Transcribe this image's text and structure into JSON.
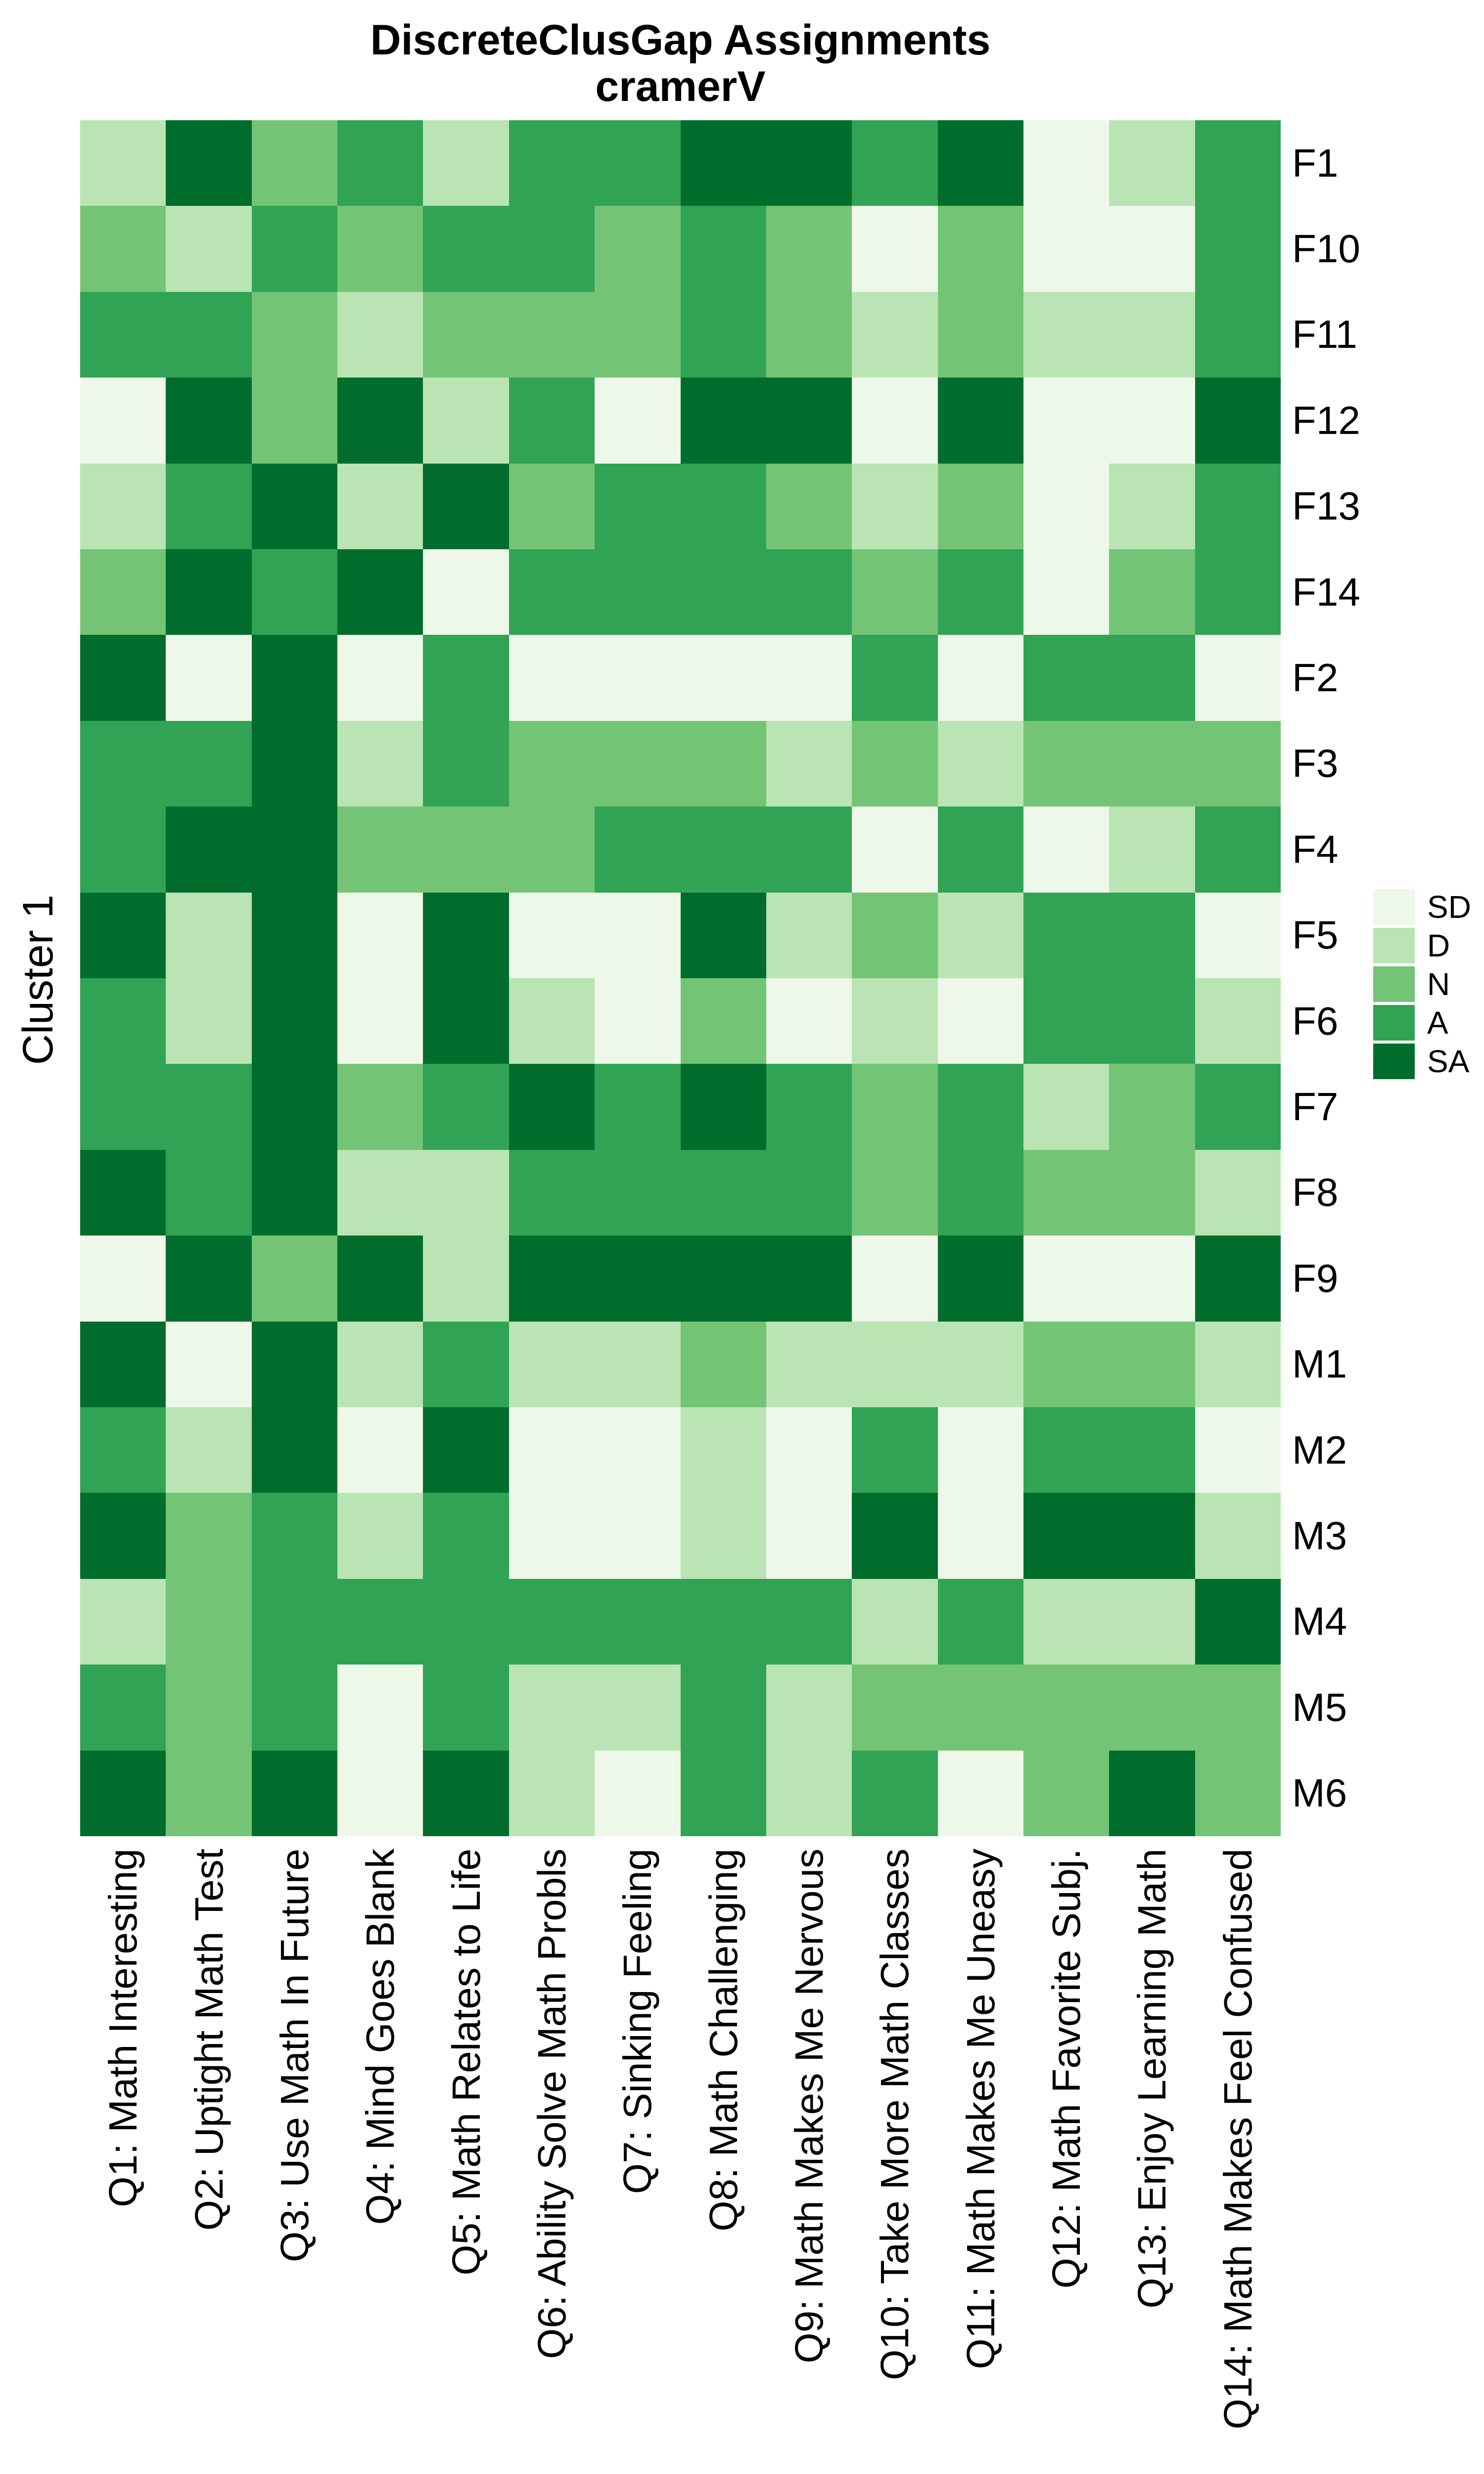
{
  "title": {
    "line1": "DiscreteClusGap Assignments",
    "line2": "cramerV"
  },
  "y_axis_title": "Cluster 1",
  "legend": {
    "entries": [
      {
        "label": "SD",
        "color": "#EDF8E9"
      },
      {
        "label": "D",
        "color": "#BAE4B3"
      },
      {
        "label": "N",
        "color": "#74C476"
      },
      {
        "label": "A",
        "color": "#31A354"
      },
      {
        "label": "SA",
        "color": "#006D2C"
      }
    ]
  },
  "chart_data": {
    "type": "heatmap",
    "title": "DiscreteClusGap Assignments cramerV",
    "levels": [
      "SD",
      "D",
      "N",
      "A",
      "SA"
    ],
    "palette": {
      "SD": "#EDF8E9",
      "D": "#BAE4B3",
      "N": "#74C476",
      "A": "#31A354",
      "SA": "#006D2C"
    },
    "rows": [
      "F1",
      "F10",
      "F11",
      "F12",
      "F13",
      "F14",
      "F2",
      "F3",
      "F4",
      "F5",
      "F6",
      "F7",
      "F8",
      "F9",
      "M1",
      "M2",
      "M3",
      "M4",
      "M5",
      "M6"
    ],
    "columns": [
      "Q1: Math Interesting",
      "Q2: Uptight Math Test",
      "Q3: Use Math In Future",
      "Q4: Mind Goes Blank",
      "Q5: Math Relates to Life",
      "Q6: Ability Solve Math Probls",
      "Q7: Sinking Feeling",
      "Q8: Math Challenging",
      "Q9: Math Makes Me Nervous",
      "Q10: Take More Math Classes",
      "Q11: Math Makes Me Uneasy",
      "Q12: Math Favorite Subj.",
      "Q13: Enjoy Learning Math",
      "Q14: Math Makes Feel Confused"
    ],
    "values": [
      [
        "D",
        "SA",
        "N",
        "A",
        "D",
        "A",
        "A",
        "SA",
        "SA",
        "A",
        "SA",
        "SD",
        "D",
        "A"
      ],
      [
        "N",
        "D",
        "A",
        "N",
        "A",
        "A",
        "N",
        "A",
        "N",
        "SD",
        "N",
        "SD",
        "SD",
        "A"
      ],
      [
        "A",
        "A",
        "N",
        "D",
        "N",
        "N",
        "N",
        "A",
        "N",
        "D",
        "N",
        "D",
        "D",
        "A"
      ],
      [
        "SD",
        "SA",
        "N",
        "SA",
        "D",
        "A",
        "SD",
        "SA",
        "SA",
        "SD",
        "SA",
        "SD",
        "SD",
        "SA"
      ],
      [
        "D",
        "A",
        "SA",
        "D",
        "SA",
        "N",
        "A",
        "A",
        "N",
        "D",
        "N",
        "SD",
        "D",
        "A"
      ],
      [
        "N",
        "SA",
        "A",
        "SA",
        "SD",
        "A",
        "A",
        "A",
        "A",
        "N",
        "A",
        "SD",
        "N",
        "A"
      ],
      [
        "SA",
        "SD",
        "SA",
        "SD",
        "A",
        "SD",
        "SD",
        "SD",
        "SD",
        "A",
        "SD",
        "A",
        "A",
        "SD"
      ],
      [
        "A",
        "A",
        "SA",
        "D",
        "A",
        "N",
        "N",
        "N",
        "D",
        "N",
        "D",
        "N",
        "N",
        "N"
      ],
      [
        "A",
        "SA",
        "SA",
        "N",
        "N",
        "N",
        "A",
        "A",
        "A",
        "SD",
        "A",
        "SD",
        "D",
        "A"
      ],
      [
        "SA",
        "D",
        "SA",
        "SD",
        "SA",
        "SD",
        "SD",
        "SA",
        "D",
        "N",
        "D",
        "A",
        "A",
        "SD"
      ],
      [
        "A",
        "D",
        "SA",
        "SD",
        "SA",
        "D",
        "SD",
        "N",
        "SD",
        "D",
        "SD",
        "A",
        "A",
        "D"
      ],
      [
        "A",
        "A",
        "SA",
        "N",
        "A",
        "SA",
        "A",
        "SA",
        "A",
        "N",
        "A",
        "D",
        "N",
        "A"
      ],
      [
        "SA",
        "A",
        "SA",
        "D",
        "D",
        "A",
        "A",
        "A",
        "A",
        "N",
        "A",
        "N",
        "N",
        "D"
      ],
      [
        "SD",
        "SA",
        "N",
        "SA",
        "D",
        "SA",
        "SA",
        "SA",
        "SA",
        "SD",
        "SA",
        "SD",
        "SD",
        "SA"
      ],
      [
        "SA",
        "SD",
        "SA",
        "D",
        "A",
        "D",
        "D",
        "N",
        "D",
        "D",
        "D",
        "N",
        "N",
        "D"
      ],
      [
        "A",
        "D",
        "SA",
        "SD",
        "SA",
        "SD",
        "SD",
        "D",
        "SD",
        "A",
        "SD",
        "A",
        "A",
        "SD"
      ],
      [
        "SA",
        "N",
        "A",
        "D",
        "A",
        "SD",
        "SD",
        "D",
        "SD",
        "SA",
        "SD",
        "SA",
        "SA",
        "D"
      ],
      [
        "D",
        "N",
        "A",
        "A",
        "A",
        "A",
        "A",
        "A",
        "A",
        "D",
        "A",
        "D",
        "D",
        "SA"
      ],
      [
        "A",
        "N",
        "A",
        "SD",
        "A",
        "D",
        "D",
        "A",
        "D",
        "N",
        "N",
        "N",
        "N",
        "N"
      ],
      [
        "SA",
        "N",
        "SA",
        "SD",
        "SA",
        "D",
        "SD",
        "A",
        "D",
        "A",
        "SD",
        "N",
        "SA",
        "N"
      ]
    ]
  }
}
